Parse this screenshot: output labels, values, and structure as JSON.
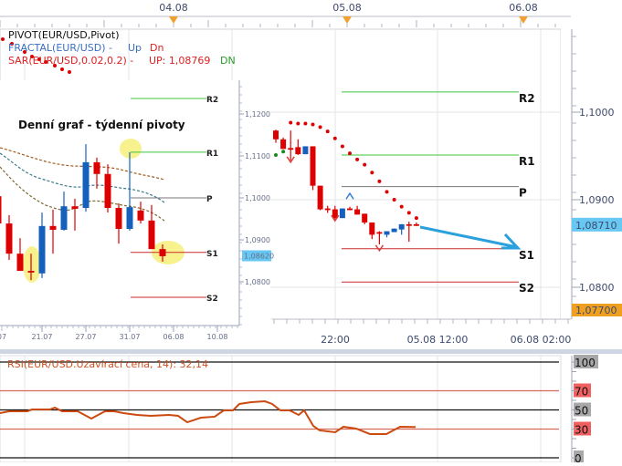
{
  "colors": {
    "bull": "#1560bd",
    "bear": "#dd0000",
    "sar": "#dd0000",
    "sar_up": "#1a8a1a",
    "r_line": "#3ec43e",
    "s_line": "#cc2a2a",
    "p_line": "#777777",
    "rsi": "#cc4a10",
    "arrow": "#2aa0dc",
    "highlight": "#f6ee7a",
    "price_tag": "#68c8f4",
    "low_tag": "#f0a020"
  },
  "top_axis": {
    "labels": [
      "04.08",
      "05.08",
      "06.08"
    ]
  },
  "legend": {
    "pivot": "PIVOT(EUR/USD,Pivot)",
    "fractal": "FRACTAL(EUR/USD) -",
    "fractal_up": "Up",
    "fractal_dn": "Dn",
    "sar": "SAR(EUR/USD,0.02,0.2) -",
    "sar_up": "UP: 1,08769",
    "sar_dn": "DN"
  },
  "main": {
    "price_labels": [
      "1,1000",
      "1,0900",
      "1,0800"
    ],
    "price_levels": [
      1.1,
      1.09,
      1.08
    ],
    "current_price": "1,08710",
    "current_value": 1.0871,
    "low_price": "1,07700",
    "time_labels": [
      "22:00",
      "05.08 12:00",
      "06.08 02:00"
    ],
    "pivots": [
      {
        "label": "R2",
        "value": 1.1023,
        "kind": "r"
      },
      {
        "label": "R1",
        "value": 1.0951,
        "kind": "r"
      },
      {
        "label": "P",
        "value": 1.0915,
        "kind": "p"
      },
      {
        "label": "S1",
        "value": 1.0844,
        "kind": "s"
      },
      {
        "label": "S2",
        "value": 1.0806,
        "kind": "s"
      }
    ],
    "candles": [
      [
        1.0979,
        1.098,
        1.0965,
        1.0969
      ],
      [
        1.0969,
        1.0971,
        1.0958,
        1.0958
      ],
      [
        1.0959,
        1.0979,
        1.0945,
        1.0959
      ],
      [
        1.096,
        1.0969,
        1.0951,
        1.0952
      ],
      [
        1.0952,
        1.0961,
        1.0952,
        1.0961
      ],
      [
        1.0961,
        1.0961,
        1.0911,
        1.0916
      ],
      [
        1.0916,
        1.0916,
        1.0888,
        1.0889
      ],
      [
        1.089,
        1.0893,
        1.0885,
        1.0889
      ],
      [
        1.0889,
        1.0893,
        1.0877,
        1.0879
      ],
      [
        1.0879,
        1.089,
        1.0879,
        1.089
      ],
      [
        1.089,
        1.0892,
        1.0888,
        1.089
      ],
      [
        1.0889,
        1.0893,
        1.0883,
        1.0883
      ],
      [
        1.0884,
        1.0884,
        1.0872,
        1.0874
      ],
      [
        1.0874,
        1.0874,
        1.0855,
        1.086
      ],
      [
        1.0863,
        1.0864,
        1.0849,
        1.0863
      ],
      [
        1.086,
        1.0864,
        1.0857,
        1.0864
      ],
      [
        1.0863,
        1.0867,
        1.0863,
        1.0867
      ],
      [
        1.0866,
        1.0872,
        1.086,
        1.0872
      ],
      [
        1.0872,
        1.0875,
        1.0852,
        1.0872
      ],
      [
        1.0872,
        1.0874,
        1.087,
        1.0872
      ]
    ],
    "sar_down": [
      [
        2,
        1.0988
      ],
      [
        3,
        1.0987
      ],
      [
        4,
        1.0987
      ],
      [
        5,
        1.0986
      ],
      [
        6,
        1.0983
      ],
      [
        7,
        1.0978
      ],
      [
        8,
        1.097
      ],
      [
        9,
        1.0961
      ],
      [
        10,
        1.0953
      ],
      [
        11,
        1.0946
      ],
      [
        12,
        1.094
      ],
      [
        13,
        1.0931
      ],
      [
        14,
        1.0921
      ],
      [
        15,
        1.0909
      ],
      [
        16,
        1.09
      ],
      [
        17,
        1.0892
      ],
      [
        18,
        1.0885
      ],
      [
        19,
        1.0879
      ]
    ],
    "sar_up": [
      [
        0,
        1.0951
      ],
      [
        1,
        1.0955
      ]
    ],
    "fractals_down": [
      [
        2,
        1.0946
      ],
      [
        8,
        1.0879
      ],
      [
        14,
        1.0845
      ]
    ],
    "fractals_up": [
      [
        10,
        1.0904
      ]
    ]
  },
  "inset": {
    "title": "Denní graf - týdenní pivoty",
    "price_labels": [
      "1,1200",
      "1,1100",
      "1,1000",
      "1,0900",
      "1,0800"
    ],
    "price_levels": [
      1.12,
      1.11,
      1.1,
      1.09,
      1.08
    ],
    "current_price": "1,08620",
    "current_value": 1.0862,
    "date_labels": [
      "07",
      "21.07",
      "27.07",
      "31.07",
      "06.08",
      "10.08"
    ],
    "pivots": [
      {
        "label": "R2",
        "value": 1.1237,
        "kind": "r"
      },
      {
        "label": "R1",
        "value": 1.1109,
        "kind": "r"
      },
      {
        "label": "P",
        "value": 1.1,
        "kind": "p"
      },
      {
        "label": "S1",
        "value": 1.087,
        "kind": "s"
      },
      {
        "label": "S2",
        "value": 1.0763,
        "kind": "s"
      }
    ],
    "candles": [
      [
        1.1004,
        1.1004,
        1.0939,
        1.0939
      ],
      [
        1.0939,
        1.0959,
        1.0852,
        1.0867
      ],
      [
        1.0867,
        1.0904,
        1.0826,
        1.0826
      ],
      [
        1.0826,
        1.0867,
        1.0804,
        1.0822
      ],
      [
        1.082,
        1.0965,
        1.0809,
        1.0933
      ],
      [
        1.0933,
        1.0972,
        1.0867,
        1.0924
      ],
      [
        1.0924,
        1.1015,
        1.0922,
        1.098
      ],
      [
        1.098,
        1.0998,
        1.0922,
        1.0974
      ],
      [
        1.0976,
        1.1128,
        1.0967,
        1.1085
      ],
      [
        1.1085,
        1.1096,
        1.1022,
        1.1057
      ],
      [
        1.1057,
        1.108,
        1.0965,
        1.0976
      ],
      [
        1.0976,
        1.0987,
        1.0891,
        1.0926
      ],
      [
        1.0926,
        1.1109,
        1.0922,
        1.0978
      ],
      [
        1.097,
        1.0991,
        1.0939,
        1.0946
      ],
      [
        1.0946,
        1.0983,
        1.0878,
        1.0878
      ],
      [
        1.0878,
        1.0889,
        1.0848,
        1.0861
      ]
    ]
  },
  "rsi": {
    "title": "RSI(EUR/USD.Uzavírací cena, 14): 32,14",
    "levels": [
      {
        "label": "100",
        "value": 100,
        "kind": "bound"
      },
      {
        "label": "70",
        "value": 70,
        "kind": "band"
      },
      {
        "label": "50",
        "value": 50,
        "kind": "bound"
      },
      {
        "label": "30",
        "value": 30,
        "kind": "band"
      },
      {
        "label": "0",
        "value": 0,
        "kind": "bound"
      }
    ],
    "series": [
      [
        0,
        46.7
      ],
      [
        2,
        48.6
      ],
      [
        6,
        48.6
      ],
      [
        7,
        50.5
      ],
      [
        11,
        50.5
      ],
      [
        12,
        52.4
      ],
      [
        13.6,
        48.6
      ],
      [
        17,
        48.6
      ],
      [
        20,
        41.0
      ],
      [
        23,
        48.6
      ],
      [
        25,
        48.6
      ],
      [
        27,
        46.7
      ],
      [
        30,
        44.8
      ],
      [
        33,
        43.8
      ],
      [
        37,
        44.8
      ],
      [
        39,
        43.8
      ],
      [
        41,
        37.1
      ],
      [
        44,
        41.9
      ],
      [
        47,
        42.9
      ],
      [
        49,
        49.5
      ],
      [
        51,
        49.5
      ],
      [
        52.4,
        56.2
      ],
      [
        55,
        58.1
      ],
      [
        58,
        59.0
      ],
      [
        59.6,
        56.2
      ],
      [
        61.4,
        49.5
      ],
      [
        63.4,
        49.5
      ],
      [
        65.4,
        44.8
      ],
      [
        66.6,
        49.5
      ],
      [
        68.6,
        33.3
      ],
      [
        70,
        28.6
      ],
      [
        73.4,
        26.7
      ],
      [
        75.2,
        32.4
      ],
      [
        78,
        30.5
      ],
      [
        81,
        24.8
      ],
      [
        84.6,
        24.8
      ],
      [
        87.6,
        32.4
      ],
      [
        91,
        32.14
      ]
    ]
  }
}
